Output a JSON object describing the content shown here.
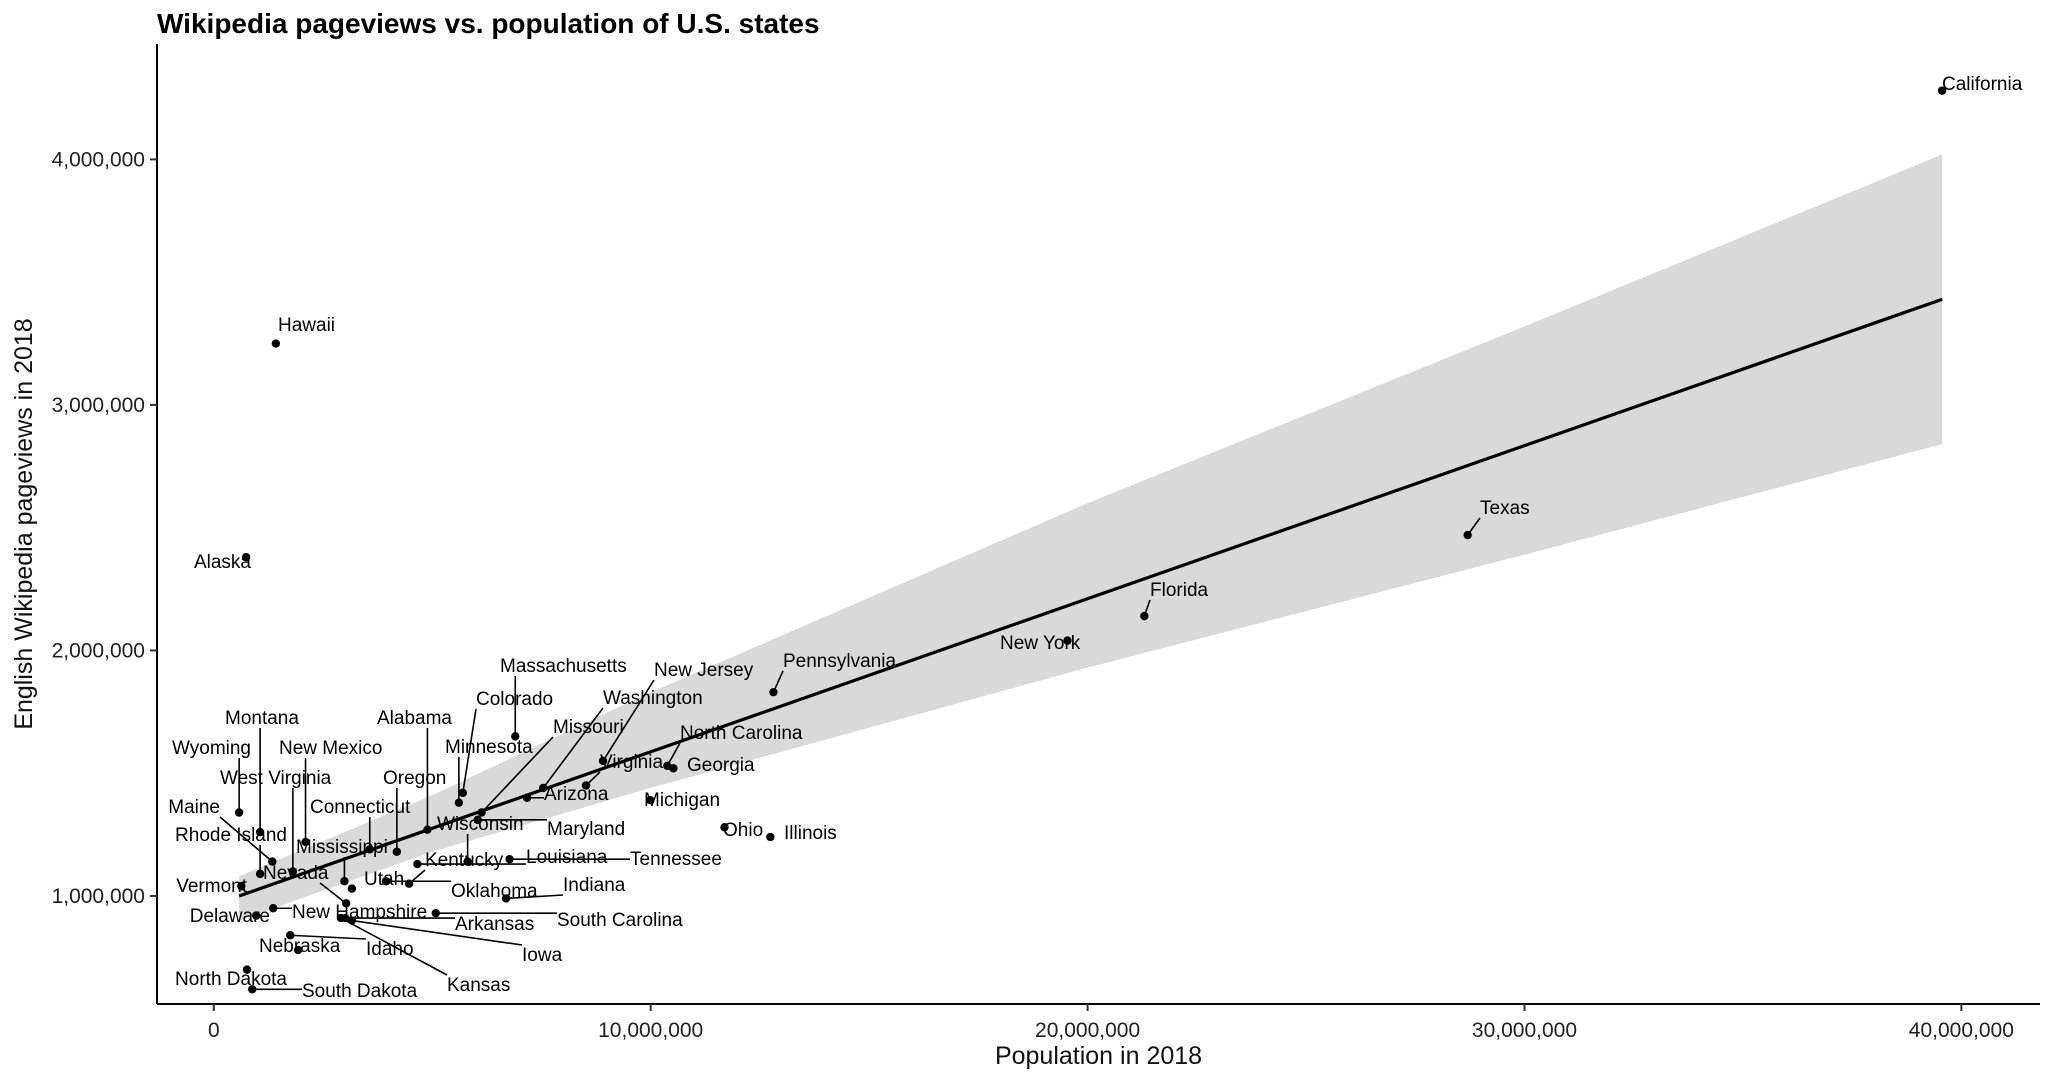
{
  "chart_data": {
    "type": "scatter",
    "title": "Wikipedia pageviews vs. population of U.S. states",
    "xlabel": "Population in 2018",
    "ylabel": "English Wikipedia pageviews in 2018",
    "xlim": [
      -1300000,
      41800000
    ],
    "ylim": [
      560000,
      4470000
    ],
    "x_ticks": [
      0,
      10000000,
      20000000,
      30000000,
      40000000
    ],
    "x_tick_labels": [
      "0",
      "10,000,000",
      "20,000,000",
      "30,000,000",
      "40,000,000"
    ],
    "y_ticks": [
      1000000,
      2000000,
      3000000,
      4000000
    ],
    "y_tick_labels": [
      "1,000,000",
      "2,000,000",
      "3,000,000",
      "4,000,000"
    ],
    "grid": false,
    "trend_line": {
      "x": [
        579000,
        39560000
      ],
      "y": [
        1000000,
        3430000
      ],
      "color": "#000000"
    },
    "confidence_band": {
      "x": [
        579000,
        5000000,
        10000000,
        20000000,
        30000000,
        39560000
      ],
      "upper": [
        1080000,
        1410000,
        1830000,
        2600000,
        3320000,
        4020000
      ],
      "lower": [
        900000,
        1180000,
        1440000,
        1930000,
        2390000,
        2840000
      ],
      "color": "#d9d9d9"
    },
    "points": [
      {
        "name": "California",
        "x": 39560000,
        "y": 4280000
      },
      {
        "name": "Texas",
        "x": 28700000,
        "y": 2470000
      },
      {
        "name": "Florida",
        "x": 21300000,
        "y": 2140000
      },
      {
        "name": "New York",
        "x": 19540000,
        "y": 2040000
      },
      {
        "name": "Pennsylvania",
        "x": 12810000,
        "y": 1830000
      },
      {
        "name": "Illinois",
        "x": 12740000,
        "y": 1240000
      },
      {
        "name": "Ohio",
        "x": 11690000,
        "y": 1280000
      },
      {
        "name": "Georgia",
        "x": 10520000,
        "y": 1520000
      },
      {
        "name": "North Carolina",
        "x": 10380000,
        "y": 1530000
      },
      {
        "name": "Michigan",
        "x": 9990000,
        "y": 1390000
      },
      {
        "name": "New Jersey",
        "x": 8910000,
        "y": 1550000
      },
      {
        "name": "Virginia",
        "x": 8520000,
        "y": 1450000
      },
      {
        "name": "Washington",
        "x": 7540000,
        "y": 1440000
      },
      {
        "name": "Arizona",
        "x": 7170000,
        "y": 1400000
      },
      {
        "name": "Massachusetts",
        "x": 6900000,
        "y": 1650000
      },
      {
        "name": "Tennessee",
        "x": 6770000,
        "y": 1150000
      },
      {
        "name": "Indiana",
        "x": 6690000,
        "y": 990000
      },
      {
        "name": "Missouri",
        "x": 6130000,
        "y": 1340000
      },
      {
        "name": "Maryland",
        "x": 6040000,
        "y": 1310000
      },
      {
        "name": "Wisconsin",
        "x": 5810000,
        "y": 1140000
      },
      {
        "name": "Colorado",
        "x": 5700000,
        "y": 1420000
      },
      {
        "name": "Minnesota",
        "x": 5610000,
        "y": 1380000
      },
      {
        "name": "South Carolina",
        "x": 5080000,
        "y": 930000
      },
      {
        "name": "Alabama",
        "x": 4890000,
        "y": 1270000
      },
      {
        "name": "Louisiana",
        "x": 4660000,
        "y": 1130000
      },
      {
        "name": "Kentucky",
        "x": 4470000,
        "y": 1050000
      },
      {
        "name": "Oregon",
        "x": 4190000,
        "y": 1180000
      },
      {
        "name": "Oklahoma",
        "x": 3940000,
        "y": 1060000
      },
      {
        "name": "Connecticut",
        "x": 3570000,
        "y": 1190000
      },
      {
        "name": "Utah",
        "x": 3160000,
        "y": 1030000
      },
      {
        "name": "Iowa",
        "x": 3160000,
        "y": 900000
      },
      {
        "name": "Nevada",
        "x": 3030000,
        "y": 970000
      },
      {
        "name": "Arkansas",
        "x": 3010000,
        "y": 910000
      },
      {
        "name": "Mississippi",
        "x": 2990000,
        "y": 1060000
      },
      {
        "name": "Kansas",
        "x": 2910000,
        "y": 910000
      },
      {
        "name": "New Mexico",
        "x": 2100000,
        "y": 1220000
      },
      {
        "name": "Nebraska",
        "x": 1930000,
        "y": 780000
      },
      {
        "name": "West Virginia",
        "x": 1810000,
        "y": 1100000
      },
      {
        "name": "Idaho",
        "x": 1750000,
        "y": 840000
      },
      {
        "name": "Hawaii",
        "x": 1420000,
        "y": 3250000
      },
      {
        "name": "New Hampshire",
        "x": 1360000,
        "y": 950000
      },
      {
        "name": "Maine",
        "x": 1340000,
        "y": 1140000
      },
      {
        "name": "Montana",
        "x": 1060000,
        "y": 1260000
      },
      {
        "name": "Rhode Island",
        "x": 1060000,
        "y": 1090000
      },
      {
        "name": "Delaware",
        "x": 970000,
        "y": 920000
      },
      {
        "name": "South Dakota",
        "x": 880000,
        "y": 620000
      },
      {
        "name": "North Dakota",
        "x": 760000,
        "y": 700000
      },
      {
        "name": "Alaska",
        "x": 740000,
        "y": 2380000
      },
      {
        "name": "Vermont",
        "x": 630000,
        "y": 1040000
      },
      {
        "name": "Wyoming",
        "x": 580000,
        "y": 1340000
      }
    ]
  }
}
